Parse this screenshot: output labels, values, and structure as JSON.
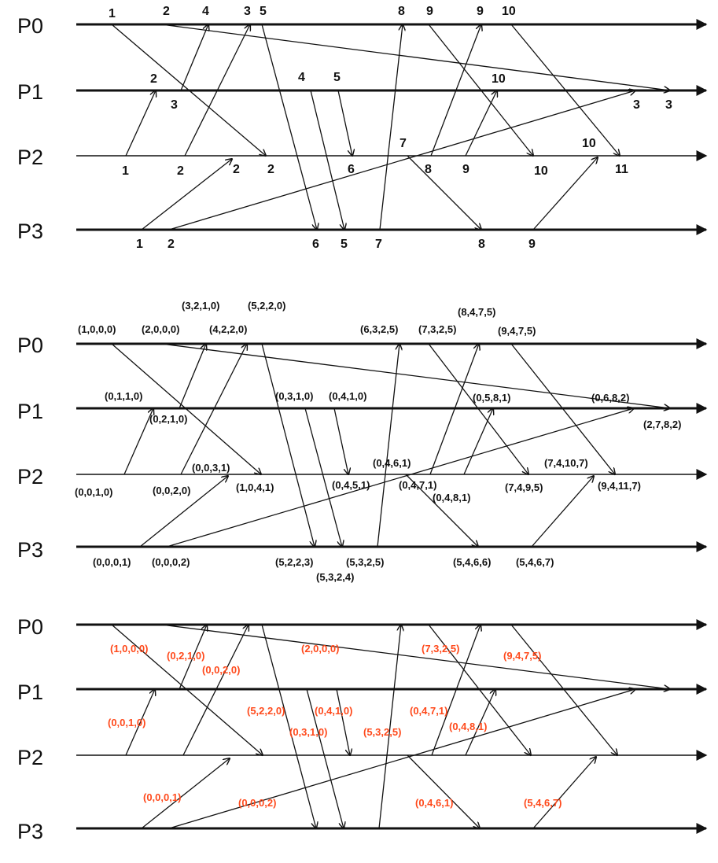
{
  "processes": [
    "P0",
    "P1",
    "P2",
    "P3"
  ],
  "panel1": {
    "labels": [
      "1",
      "2",
      "4",
      "3",
      "5",
      "8",
      "9",
      "9",
      "10",
      "2",
      "3",
      "4",
      "5",
      "10",
      "3",
      "3",
      "1",
      "2",
      "2",
      "2",
      "6",
      "7",
      "8",
      "9",
      "10",
      "10",
      "11",
      "1",
      "2",
      "6",
      "5",
      "7",
      "8",
      "9"
    ]
  },
  "panel2": {
    "labels": [
      "(3,2,1,0)",
      "(5,2,2,0)",
      "(8,4,7,5)",
      "(1,0,0,0)",
      "(2,0,0,0)",
      "(4,2,2,0)",
      "(6,3,2,5)",
      "(7,3,2,5)",
      "(9,4,7,5)",
      "(0,1,1,0)",
      "(0,3,1,0)",
      "(0,4,1,0)",
      "(0,5,8,1)",
      "(0,6,8,2)",
      "(0,2,1,0)",
      "(2,7,8,2)",
      "(0,0,3,1)",
      "(0,4,6,1)",
      "(7,4,10,7)",
      "(0,0,1,0)",
      "(0,0,2,0)",
      "(1,0,4,1)",
      "(0,4,5,1)",
      "(0,4,7,1)",
      "(7,4,9,5)",
      "(9,4,11,7)",
      "(0,4,8,1)",
      "(0,0,0,1)",
      "(0,0,0,2)",
      "(5,2,2,3)",
      "(5,3,2,5)",
      "(5,4,6,6)",
      "(5,4,6,7)",
      "(5,3,2,4)"
    ]
  },
  "panel3": {
    "labels": [
      "(1,0,0,0)",
      "(0,2,1,0)",
      "(0,0,2,0)",
      "(2,0,0,0)",
      "(7,3,2,5)",
      "(9,4,7,5)",
      "(0,0,1,0)",
      "(5,2,2,0)",
      "(0,4,1,0)",
      "(0,3,1,0)",
      "(5,3,2,5)",
      "(0,4,7,1)",
      "(0,4,8,1)",
      "(0,0,0,1)",
      "(0,0,0,2)",
      "(0,4,6,1)",
      "(5,4,6,7)"
    ]
  },
  "colors": {
    "line": "#111111",
    "red_label": "#ff4a1c"
  }
}
